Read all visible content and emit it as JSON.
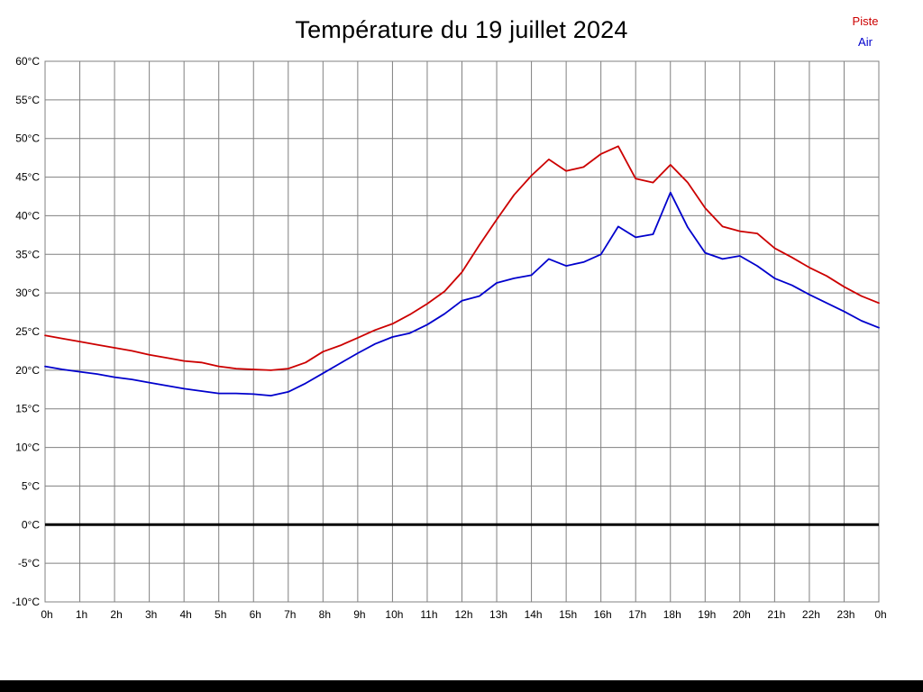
{
  "title": "Température du 19 juillet 2024",
  "legend": [
    {
      "label": "Piste",
      "color": "#cc0000"
    },
    {
      "label": "Air",
      "color": "#0000cc"
    }
  ],
  "chart_data": {
    "type": "line",
    "title": "Température du 19 juillet 2024",
    "grid": true,
    "legend_position": "top-right",
    "xlim": [
      0,
      24
    ],
    "ylim": [
      -10,
      60
    ],
    "x_unit": "hours",
    "x": [
      0,
      0.5,
      1,
      1.5,
      2,
      2.5,
      3,
      3.5,
      4,
      4.5,
      5,
      5.5,
      6,
      6.5,
      7,
      7.5,
      8,
      8.5,
      9,
      9.5,
      10,
      10.5,
      11,
      11.5,
      12,
      12.5,
      13,
      13.5,
      14,
      14.5,
      15,
      15.5,
      16,
      16.5,
      17,
      17.5,
      18,
      18.5,
      19,
      19.5,
      20,
      20.5,
      21,
      21.5,
      22,
      22.5,
      23,
      23.5,
      24
    ],
    "series": [
      {
        "name": "Piste",
        "color": "#cc0000",
        "values": [
          24.5,
          24.1,
          23.7,
          23.3,
          22.9,
          22.5,
          22.0,
          21.6,
          21.2,
          21.0,
          20.5,
          20.2,
          20.1,
          20.0,
          20.2,
          21.0,
          22.4,
          23.2,
          24.2,
          25.2,
          26.0,
          27.2,
          28.6,
          30.2,
          32.7,
          36.2,
          39.5,
          42.7,
          45.2,
          47.3,
          45.8,
          46.3,
          48.0,
          49.0,
          44.8,
          44.3,
          46.6,
          44.3,
          41.0,
          38.6,
          38.0,
          37.7,
          35.8,
          34.6,
          33.3,
          32.2,
          30.8,
          29.6,
          28.7
        ]
      },
      {
        "name": "Air",
        "color": "#0000cc",
        "values": [
          20.5,
          20.1,
          19.8,
          19.5,
          19.1,
          18.8,
          18.4,
          18.0,
          17.6,
          17.3,
          17.0,
          17.0,
          16.9,
          16.7,
          17.2,
          18.3,
          19.6,
          20.9,
          22.2,
          23.4,
          24.3,
          24.8,
          25.9,
          27.3,
          29.0,
          29.6,
          31.3,
          31.9,
          32.3,
          34.4,
          33.5,
          34.0,
          35.0,
          38.6,
          37.2,
          37.6,
          43.0,
          38.5,
          35.2,
          34.4,
          34.8,
          33.5,
          31.9,
          31.0,
          29.8,
          28.7,
          27.6,
          26.4,
          25.5
        ]
      }
    ],
    "x_tick_hours": [
      0,
      1,
      2,
      3,
      4,
      5,
      6,
      7,
      8,
      9,
      10,
      11,
      12,
      13,
      14,
      15,
      16,
      17,
      18,
      19,
      20,
      21,
      22,
      23,
      24
    ],
    "x_tick_labels": [
      "0h",
      "1h",
      "2h",
      "3h",
      "4h",
      "5h",
      "6h",
      "7h",
      "8h",
      "9h",
      "10h",
      "11h",
      "12h",
      "13h",
      "14h",
      "15h",
      "16h",
      "17h",
      "18h",
      "19h",
      "20h",
      "21h",
      "22h",
      "23h",
      "0h"
    ],
    "y_ticks": [
      60,
      55,
      50,
      45,
      40,
      35,
      30,
      25,
      20,
      15,
      10,
      5,
      0,
      -5,
      -10
    ],
    "y_tick_labels": [
      "60°C",
      "55°C",
      "50°C",
      "45°C",
      "40°C",
      "35°C",
      "30°C",
      "25°C",
      "20°C",
      "15°C",
      "10°C",
      "5°C",
      "0°C",
      "-5°C",
      "-10°C"
    ],
    "zero_line": true,
    "grid_color": "#808080",
    "zero_line_color": "#000000"
  }
}
